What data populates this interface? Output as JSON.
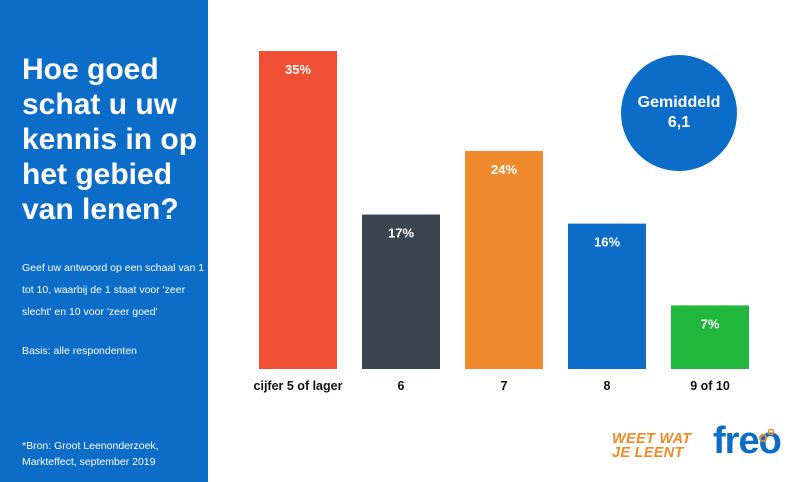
{
  "sidebar": {
    "title": "Hoe goed schat u uw kennis in op het gebied van lenen?",
    "subtitle": "Geef uw antwoord op een schaal van 1 tot 10, waarbij de 1 staat voor 'zeer slecht' en 10 voor 'zeer goed'",
    "basis": "Basis: alle respondenten",
    "source": "*Bron:  Groot Leenonderzoek, Markteffect, september 2019"
  },
  "badge": {
    "label": "Gemiddeld",
    "value": "6,1"
  },
  "logos": {
    "tagline_line1": "WEET WAT",
    "tagline_line2": "JE LEENT",
    "brand": "freo"
  },
  "colors": {
    "panel": "#0b6dc7",
    "bars": [
      "#ef5033",
      "#3b4550",
      "#f08a2e",
      "#0b6dc7",
      "#21b63c"
    ]
  },
  "chart_data": {
    "type": "bar",
    "categories": [
      "cijfer 5 of lager",
      "6",
      "7",
      "8",
      "9 of 10"
    ],
    "values": [
      35,
      17,
      24,
      16,
      7
    ],
    "value_labels": [
      "35%",
      "17%",
      "24%",
      "16%",
      "7%"
    ],
    "unit": "%",
    "title": "",
    "xlabel": "",
    "ylabel": "",
    "ylim": [
      0,
      35
    ],
    "grid": false
  }
}
